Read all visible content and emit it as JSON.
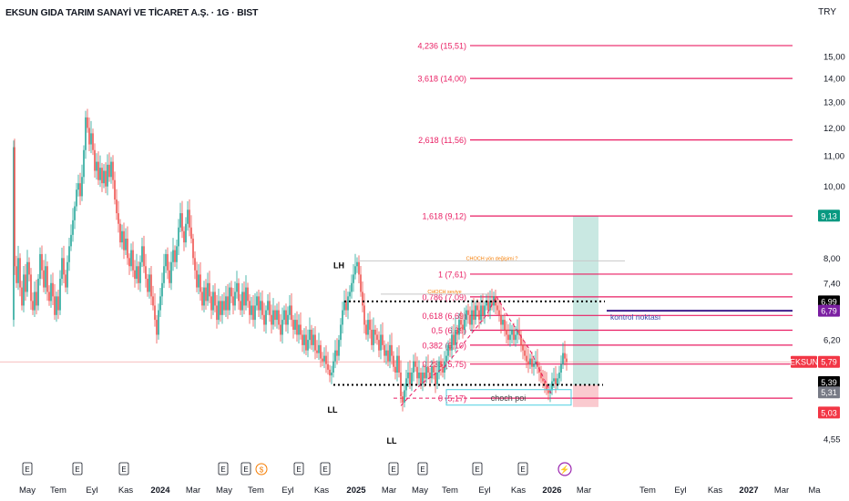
{
  "header": {
    "title": "EKSUN GIDA TARIM SANAYİ VE TİCARET A.Ş. · 1G · BIST",
    "currency": "TRY"
  },
  "colors": {
    "up": "#26a69a",
    "down": "#ef5350",
    "fib": "#e91e63",
    "target_zone": "#a5d9cf",
    "stop_zone": "#f8b4bb",
    "kontrol": "#3f1e8c",
    "choch_label": "#f57c00",
    "poi_box": "#4dd0e1"
  },
  "chart_data": {
    "type": "candlestick",
    "ylim": [
      4.35,
      15.6
    ],
    "y_scale": "log",
    "y_ticks": [
      "15,00",
      "14,00",
      "13,00",
      "12,00",
      "11,00",
      "10,00",
      "8,00",
      "7,40",
      "6,20",
      "4,55"
    ],
    "x_ticks": [
      "May",
      "Tem",
      "Eyl",
      "Kas",
      "2024",
      "Mar",
      "May",
      "Tem",
      "Eyl",
      "Kas",
      "2025",
      "Mar",
      "May",
      "Tem",
      "Eyl",
      "Kas",
      "2026",
      "Mar",
      "Tem",
      "Eyl",
      "Kas",
      "2027",
      "Mar",
      "Ma"
    ],
    "price_levels": [
      {
        "label": "9,13",
        "value": 9.13,
        "style": "green"
      },
      {
        "label": "6,99",
        "value": 6.99,
        "style": "black"
      },
      {
        "label": "6,79",
        "value": 6.79,
        "style": "purple"
      },
      {
        "label": "EKSUN",
        "value": 5.79,
        "style": "ticker"
      },
      {
        "label": "5,79",
        "value": 5.79,
        "style": "red"
      },
      {
        "label": "5,39",
        "value": 5.39,
        "style": "black"
      },
      {
        "label": "5,31",
        "value": 5.31,
        "style": "gray"
      },
      {
        "label": "5,03",
        "value": 5.03,
        "style": "red"
      }
    ],
    "fib_levels": [
      {
        "label": "4,236 (15,51)",
        "value": 15.51
      },
      {
        "label": "3,618 (14,00)",
        "value": 14.0
      },
      {
        "label": "2,618 (11,56)",
        "value": 11.56
      },
      {
        "label": "1,618 (9,12)",
        "value": 9.12
      },
      {
        "label": "1 (7,61)",
        "value": 7.61
      },
      {
        "label": "0,786 (7,09)",
        "value": 7.09
      },
      {
        "label": "0,618 (6,69)",
        "value": 6.69
      },
      {
        "label": "0,5 (6,39)",
        "value": 6.39
      },
      {
        "label": "0,382 (6,10)",
        "value": 6.1
      },
      {
        "label": "0,236 (5,75)",
        "value": 5.75
      },
      {
        "label": "0 (5,17)",
        "value": 5.17
      }
    ],
    "annotations": {
      "lh": "LH",
      "ll1": "LL",
      "ll2": "LL",
      "choch_top": "CHOCH yön değişimi ?",
      "choch_mid": "CHOCH seviye",
      "kontrol": "kontrol noktası",
      "choch_poi": "choch poi"
    },
    "series_points": [
      [
        14,
        6.6
      ],
      [
        15,
        11.3
      ],
      [
        16,
        7.8
      ],
      [
        18,
        7.4
      ],
      [
        20,
        8.0
      ],
      [
        22,
        7.3
      ],
      [
        24,
        6.9
      ],
      [
        26,
        7.6
      ],
      [
        28,
        7.2
      ],
      [
        30,
        7.9
      ],
      [
        32,
        7.6
      ],
      [
        34,
        7.0
      ],
      [
        36,
        6.8
      ],
      [
        38,
        7.2
      ],
      [
        40,
        6.9
      ],
      [
        42,
        7.5
      ],
      [
        44,
        8.1
      ],
      [
        46,
        7.7
      ],
      [
        48,
        7.3
      ],
      [
        50,
        7.8
      ],
      [
        52,
        7.2
      ],
      [
        54,
        7.0
      ],
      [
        56,
        7.4
      ],
      [
        58,
        7.1
      ],
      [
        60,
        6.7
      ],
      [
        62,
        7.1
      ],
      [
        64,
        6.8
      ],
      [
        66,
        7.5
      ],
      [
        68,
        8.0
      ],
      [
        70,
        7.6
      ],
      [
        72,
        7.3
      ],
      [
        74,
        7.9
      ],
      [
        76,
        8.3
      ],
      [
        78,
        8.6
      ],
      [
        80,
        9.0
      ],
      [
        82,
        9.4
      ],
      [
        84,
        9.9
      ],
      [
        86,
        10.1
      ],
      [
        88,
        9.7
      ],
      [
        90,
        10.3
      ],
      [
        92,
        11.2
      ],
      [
        94,
        12.4
      ],
      [
        96,
        12.0
      ],
      [
        98,
        11.4
      ],
      [
        100,
        11.8
      ],
      [
        102,
        11.2
      ],
      [
        104,
        10.5
      ],
      [
        106,
        10.8
      ],
      [
        108,
        10.2
      ],
      [
        110,
        10.6
      ],
      [
        112,
        10.1
      ],
      [
        114,
        10.5
      ],
      [
        116,
        10.0
      ],
      [
        118,
        10.7
      ],
      [
        120,
        10.3
      ],
      [
        122,
        10.8
      ],
      [
        124,
        10.2
      ],
      [
        126,
        9.6
      ],
      [
        128,
        9.2
      ],
      [
        130,
        8.9
      ],
      [
        132,
        8.4
      ],
      [
        134,
        8.7
      ],
      [
        136,
        8.2
      ],
      [
        138,
        8.5
      ],
      [
        140,
        8.0
      ],
      [
        142,
        7.8
      ],
      [
        144,
        8.2
      ],
      [
        146,
        7.7
      ],
      [
        148,
        7.5
      ],
      [
        150,
        7.8
      ],
      [
        152,
        7.4
      ],
      [
        154,
        7.9
      ],
      [
        156,
        8.3
      ],
      [
        158,
        7.8
      ],
      [
        160,
        7.5
      ],
      [
        162,
        7.2
      ],
      [
        164,
        7.6
      ],
      [
        166,
        7.1
      ],
      [
        168,
        6.9
      ],
      [
        170,
        6.6
      ],
      [
        172,
        6.3
      ],
      [
        174,
        6.8
      ],
      [
        176,
        7.1
      ],
      [
        178,
        7.4
      ],
      [
        180,
        7.8
      ],
      [
        182,
        8.1
      ],
      [
        184,
        7.7
      ],
      [
        186,
        7.4
      ],
      [
        188,
        7.9
      ],
      [
        190,
        8.2
      ],
      [
        192,
        7.9
      ],
      [
        194,
        8.3
      ],
      [
        196,
        8.8
      ],
      [
        198,
        9.2
      ],
      [
        200,
        8.7
      ],
      [
        202,
        8.4
      ],
      [
        204,
        8.9
      ],
      [
        206,
        9.3
      ],
      [
        208,
        8.8
      ],
      [
        210,
        8.5
      ],
      [
        212,
        8.0
      ],
      [
        214,
        7.7
      ],
      [
        216,
        7.3
      ],
      [
        218,
        7.6
      ],
      [
        220,
        7.2
      ],
      [
        222,
        6.9
      ],
      [
        224,
        7.3
      ],
      [
        226,
        7.0
      ],
      [
        228,
        7.4
      ],
      [
        230,
        7.1
      ],
      [
        232,
        6.8
      ],
      [
        234,
        7.2
      ],
      [
        236,
        6.9
      ],
      [
        238,
        6.6
      ],
      [
        240,
        7.0
      ],
      [
        242,
        6.7
      ],
      [
        244,
        7.0
      ],
      [
        246,
        6.8
      ],
      [
        248,
        7.1
      ],
      [
        250,
        6.8
      ],
      [
        252,
        7.3
      ],
      [
        254,
        7.1
      ],
      [
        256,
        6.9
      ],
      [
        258,
        7.2
      ],
      [
        260,
        7.4
      ],
      [
        262,
        7.0
      ],
      [
        264,
        6.8
      ],
      [
        266,
        7.2
      ],
      [
        268,
        6.9
      ],
      [
        270,
        7.3
      ],
      [
        272,
        7.0
      ],
      [
        274,
        6.7
      ],
      [
        276,
        6.9
      ],
      [
        278,
        6.6
      ],
      [
        280,
        6.9
      ],
      [
        282,
        7.1
      ],
      [
        284,
        6.8
      ],
      [
        286,
        7.0
      ],
      [
        288,
        6.7
      ],
      [
        290,
        6.5
      ],
      [
        292,
        6.8
      ],
      [
        294,
        7.0
      ],
      [
        296,
        6.7
      ],
      [
        298,
        6.5
      ],
      [
        300,
        6.8
      ],
      [
        302,
        6.6
      ],
      [
        304,
        6.8
      ],
      [
        306,
        6.5
      ],
      [
        308,
        6.3
      ],
      [
        310,
        6.6
      ],
      [
        312,
        6.8
      ],
      [
        314,
        6.5
      ],
      [
        316,
        6.7
      ],
      [
        318,
        6.9
      ],
      [
        320,
        6.6
      ],
      [
        322,
        6.4
      ],
      [
        324,
        6.6
      ],
      [
        326,
        6.3
      ],
      [
        328,
        6.5
      ],
      [
        330,
        6.3
      ],
      [
        332,
        6.1
      ],
      [
        334,
        6.3
      ],
      [
        336,
        6.0
      ],
      [
        338,
        6.2
      ],
      [
        340,
        6.4
      ],
      [
        342,
        6.1
      ],
      [
        344,
        6.3
      ],
      [
        346,
        6.0
      ],
      [
        348,
        5.95
      ],
      [
        350,
        6.1
      ],
      [
        352,
        5.85
      ],
      [
        354,
        5.8
      ],
      [
        356,
        5.9
      ],
      [
        358,
        5.75
      ],
      [
        360,
        5.65
      ],
      [
        362,
        5.55
      ],
      [
        364,
        5.6
      ],
      [
        366,
        5.8
      ],
      [
        368,
        6.0
      ],
      [
        370,
        5.9
      ],
      [
        372,
        6.2
      ],
      [
        374,
        6.5
      ],
      [
        376,
        6.8
      ],
      [
        378,
        7.0
      ],
      [
        380,
        6.8
      ],
      [
        382,
        7.1
      ],
      [
        384,
        7.2
      ],
      [
        386,
        7.4
      ],
      [
        388,
        7.6
      ],
      [
        390,
        7.8
      ],
      [
        392,
        7.9
      ],
      [
        394,
        7.6
      ],
      [
        396,
        7.2
      ],
      [
        398,
        6.9
      ],
      [
        400,
        6.5
      ],
      [
        402,
        6.3
      ],
      [
        404,
        6.6
      ],
      [
        406,
        6.4
      ],
      [
        408,
        6.1
      ],
      [
        410,
        6.4
      ],
      [
        412,
        6.3
      ],
      [
        414,
        6.2
      ],
      [
        416,
        6.0
      ],
      [
        418,
        6.3
      ],
      [
        420,
        6.1
      ],
      [
        422,
        5.9
      ],
      [
        424,
        6.0
      ],
      [
        426,
        5.8
      ],
      [
        428,
        6.1
      ],
      [
        430,
        5.9
      ],
      [
        432,
        5.7
      ],
      [
        434,
        5.6
      ],
      [
        436,
        5.9
      ],
      [
        438,
        5.6
      ],
      [
        440,
        5.2
      ],
      [
        442,
        5.1
      ],
      [
        444,
        5.3
      ],
      [
        446,
        5.5
      ],
      [
        448,
        5.6
      ],
      [
        450,
        5.4
      ],
      [
        452,
        5.6
      ],
      [
        454,
        5.8
      ],
      [
        456,
        5.7
      ],
      [
        458,
        5.5
      ],
      [
        460,
        5.6
      ],
      [
        462,
        5.4
      ],
      [
        464,
        5.6
      ],
      [
        466,
        5.5
      ],
      [
        468,
        5.7
      ],
      [
        470,
        5.6
      ],
      [
        472,
        5.5
      ],
      [
        474,
        5.7
      ],
      [
        476,
        5.6
      ],
      [
        478,
        5.4
      ],
      [
        480,
        5.6
      ],
      [
        482,
        5.8
      ],
      [
        484,
        5.7
      ],
      [
        486,
        5.6
      ],
      [
        488,
        5.8
      ],
      [
        490,
        5.9
      ],
      [
        492,
        6.1
      ],
      [
        494,
        6.0
      ],
      [
        496,
        6.3
      ],
      [
        498,
        6.1
      ],
      [
        500,
        6.4
      ],
      [
        502,
        6.3
      ],
      [
        504,
        6.6
      ],
      [
        506,
        6.5
      ],
      [
        508,
        6.4
      ],
      [
        510,
        6.6
      ],
      [
        512,
        6.8
      ],
      [
        514,
        6.7
      ],
      [
        516,
        6.5
      ],
      [
        518,
        6.8
      ],
      [
        520,
        6.6
      ],
      [
        522,
        6.9
      ],
      [
        524,
        6.8
      ],
      [
        526,
        6.6
      ],
      [
        528,
        6.9
      ],
      [
        530,
        6.7
      ],
      [
        532,
        6.9
      ],
      [
        534,
        7.0
      ],
      [
        536,
        6.8
      ],
      [
        538,
        7.0
      ],
      [
        540,
        6.9
      ],
      [
        542,
        7.1
      ],
      [
        544,
        6.9
      ],
      [
        546,
        6.8
      ],
      [
        548,
        6.7
      ],
      [
        550,
        6.5
      ],
      [
        552,
        6.6
      ],
      [
        554,
        6.4
      ],
      [
        556,
        6.3
      ],
      [
        558,
        6.2
      ],
      [
        560,
        6.3
      ],
      [
        562,
        6.4
      ],
      [
        564,
        6.2
      ],
      [
        566,
        6.3
      ],
      [
        568,
        6.4
      ],
      [
        570,
        6.3
      ],
      [
        572,
        6.1
      ],
      [
        574,
        6.0
      ],
      [
        576,
        5.9
      ],
      [
        578,
        5.8
      ],
      [
        580,
        5.75
      ],
      [
        582,
        5.85
      ],
      [
        584,
        5.7
      ],
      [
        586,
        5.75
      ],
      [
        588,
        5.8
      ],
      [
        590,
        5.7
      ],
      [
        592,
        5.6
      ],
      [
        594,
        5.5
      ],
      [
        596,
        5.45
      ],
      [
        598,
        5.4
      ],
      [
        600,
        5.3
      ],
      [
        602,
        5.25
      ],
      [
        604,
        5.3
      ],
      [
        606,
        5.45
      ],
      [
        608,
        5.5
      ],
      [
        610,
        5.4
      ],
      [
        612,
        5.5
      ],
      [
        614,
        5.6
      ],
      [
        616,
        5.75
      ],
      [
        618,
        5.95
      ],
      [
        620,
        5.85
      ],
      [
        622,
        5.79
      ]
    ]
  }
}
